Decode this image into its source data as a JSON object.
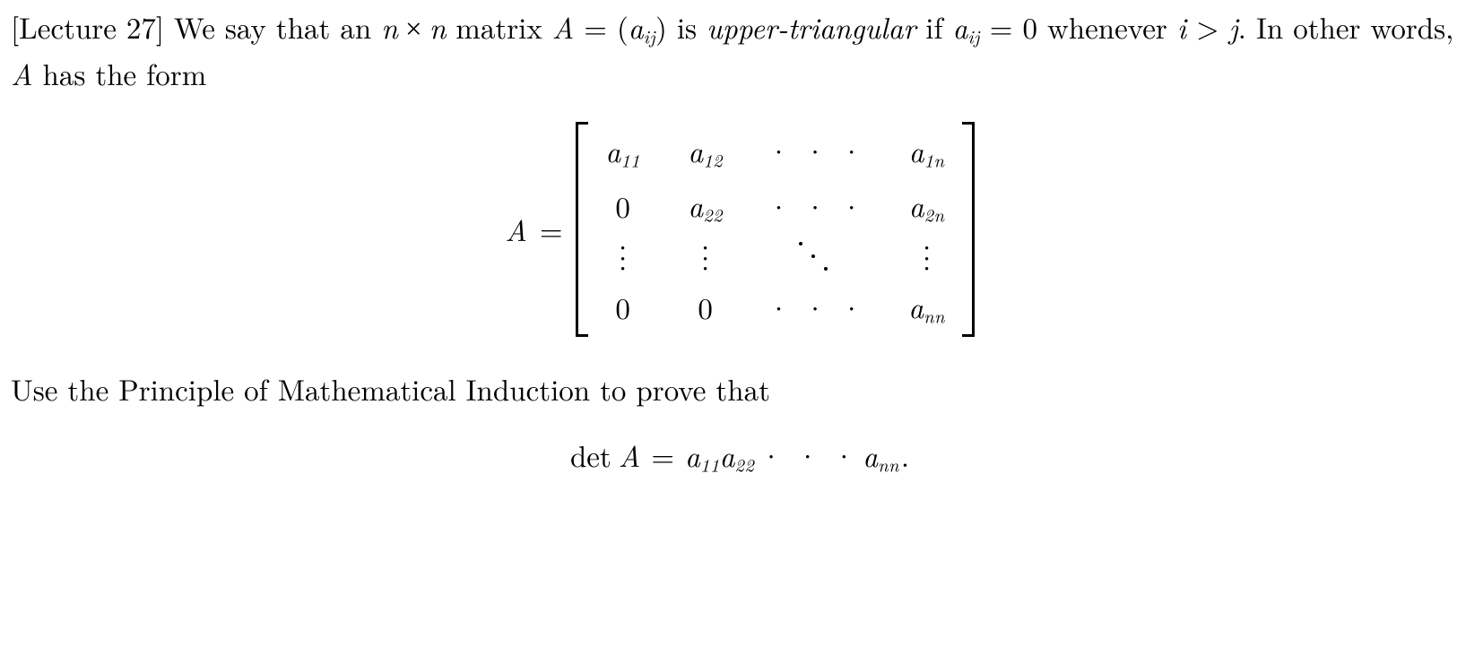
{
  "colors": {
    "text": "#000000",
    "background": "#ffffff"
  },
  "font_size_pt": 25,
  "lecture_tag": "[Lecture 27]",
  "intro_1a": " We say that an ",
  "nxn_left": "n",
  "nxn_times": " × ",
  "nxn_right": "n",
  "intro_1b": " matrix ",
  "A": "A",
  "eq_sign": " = ",
  "lparen": "(",
  "a": "a",
  "sub_ij": "ij",
  "rparen": ")",
  "intro_1c": " is ",
  "upper_tri": "upper-triangular",
  "intro_1d": " if ",
  "zero": "0",
  "cond_a": " = 0 whenever ",
  "cond_i": "i",
  "cond_gt": " > ",
  "cond_j": "j",
  "cond_end": ".  In other words, ",
  "cond_tail": " has the form",
  "matrix": {
    "lhs": "A",
    "eq": "=",
    "rows": [
      [
        "a11",
        "a12",
        "cdots",
        "a1n"
      ],
      [
        "0",
        "a22",
        "cdots",
        "a2n"
      ],
      [
        "vdots",
        "vdots",
        "ddots",
        "vdots"
      ],
      [
        "0",
        "0",
        "cdots",
        "ann"
      ]
    ],
    "sub_11": "11",
    "sub_12": "12",
    "sub_1n": "1n",
    "sub_22": "22",
    "sub_2n": "2n",
    "sub_nn": "nn",
    "cdots": "· · ·"
  },
  "para2": "Use the Principle of Mathematical Induction to prove that",
  "det": {
    "det_word": "det",
    "A": "A",
    "eq": "=",
    "t1_sub": "11",
    "t2_sub": "22",
    "dots": "· · ·",
    "tn_sub": "nn",
    "period": "."
  }
}
